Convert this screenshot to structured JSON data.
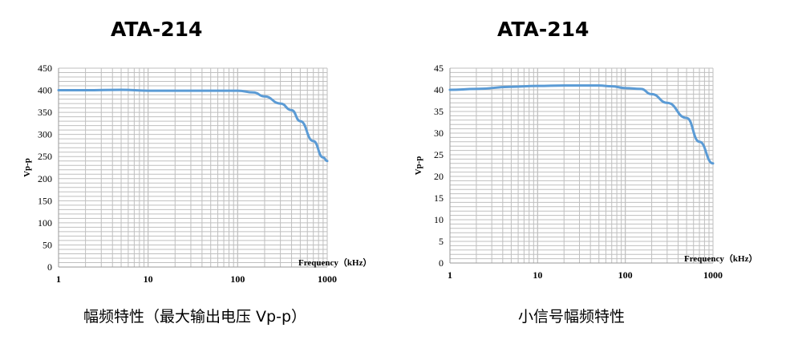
{
  "chart_data": [
    {
      "type": "line",
      "title": "ATA-214",
      "caption": "幅频特性（最大输出电压 Vp-p）",
      "xlabel": "Frequency（kHz）",
      "ylabel": "Vp-p",
      "xscale": "log",
      "xlim": [
        1,
        1000
      ],
      "ylim": [
        0,
        450
      ],
      "xticks": [
        "1",
        "10",
        "100",
        "1000"
      ],
      "yticks": [
        "0",
        "50",
        "100",
        "150",
        "200",
        "250",
        "300",
        "350",
        "400",
        "450"
      ],
      "grid": true,
      "color": "#5b9bd5",
      "x": [
        1,
        2,
        5,
        10,
        30,
        100,
        150,
        200,
        300,
        400,
        500,
        700,
        900,
        1000
      ],
      "y": [
        400,
        400,
        401,
        399,
        399,
        399,
        395,
        386,
        370,
        355,
        330,
        285,
        248,
        240
      ]
    },
    {
      "type": "line",
      "title": "ATA-214",
      "caption": "小信号幅频特性",
      "xlabel": "Frequency（kHz）",
      "ylabel": "Vp-p",
      "xscale": "log",
      "xlim": [
        1,
        1000
      ],
      "ylim": [
        0,
        45
      ],
      "xticks": [
        "1",
        "10",
        "100",
        "1000"
      ],
      "yticks": [
        "0",
        "5",
        "10",
        "15",
        "20",
        "25",
        "30",
        "35",
        "40",
        "45"
      ],
      "grid": true,
      "color": "#5b9bd5",
      "x": [
        1,
        2,
        5,
        10,
        20,
        50,
        70,
        100,
        150,
        200,
        300,
        500,
        700,
        1000
      ],
      "y": [
        40,
        40.2,
        40.7,
        40.9,
        41,
        41,
        40.8,
        40.4,
        40.2,
        39,
        37,
        33.5,
        28,
        23
      ]
    }
  ]
}
